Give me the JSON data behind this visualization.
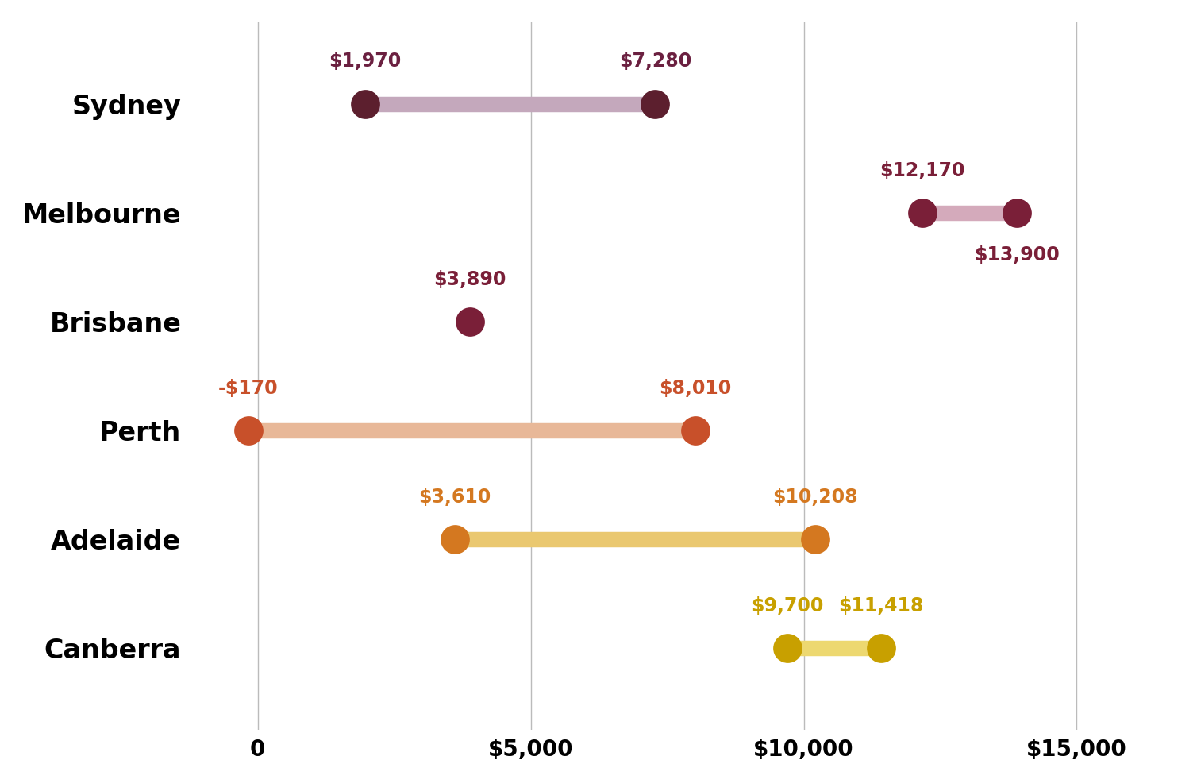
{
  "cities": [
    "Sydney",
    "Melbourne",
    "Brisbane",
    "Perth",
    "Adelaide",
    "Canberra"
  ],
  "ranges": [
    [
      1970,
      7280
    ],
    [
      12170,
      13900
    ],
    [
      3890,
      3890
    ],
    [
      -170,
      8010
    ],
    [
      3610,
      10208
    ],
    [
      9700,
      11418
    ]
  ],
  "dot_colors": [
    "#5C1F2E",
    "#7A1F38",
    "#7A1F38",
    "#C8502A",
    "#D47820",
    "#C8A000"
  ],
  "line_colors": [
    "#C4A8BC",
    "#D4AABB",
    "#C4A8BC",
    "#E8B898",
    "#EAC870",
    "#EDD870"
  ],
  "label_colors": [
    "#6B2040",
    "#7A1F38",
    "#7A1F38",
    "#C8502A",
    "#D47820",
    "#C8A000"
  ],
  "xlim": [
    -1200,
    16800
  ],
  "xticks": [
    0,
    5000,
    10000,
    15000
  ],
  "xtick_labels": [
    "0",
    "$5,000",
    "$10,000",
    "$15,000"
  ],
  "background_color": "#FFFFFF",
  "grid_color": "#BBBBBB",
  "line_width": 14,
  "dot_size": 280,
  "font_size_labels": 17,
  "font_size_city": 24,
  "font_size_ticks": 20,
  "label_positions": [
    {
      "city": "Sydney",
      "x1_align": "center",
      "x1_va": "bottom",
      "x2_align": "center",
      "x2_va": "bottom"
    },
    {
      "city": "Melbourne",
      "x1_align": "center",
      "x1_va": "bottom",
      "x2_align": "center",
      "x2_va": "top"
    },
    {
      "city": "Brisbane",
      "x1_align": "center",
      "x1_va": "bottom",
      "x2_align": "center",
      "x2_va": "bottom"
    },
    {
      "city": "Perth",
      "x1_align": "center",
      "x1_va": "bottom",
      "x2_align": "center",
      "x2_va": "bottom"
    },
    {
      "city": "Adelaide",
      "x1_align": "center",
      "x1_va": "bottom",
      "x2_align": "center",
      "x2_va": "bottom"
    },
    {
      "city": "Canberra",
      "x1_align": "center",
      "x1_va": "bottom",
      "x2_align": "center",
      "x2_va": "bottom"
    }
  ]
}
